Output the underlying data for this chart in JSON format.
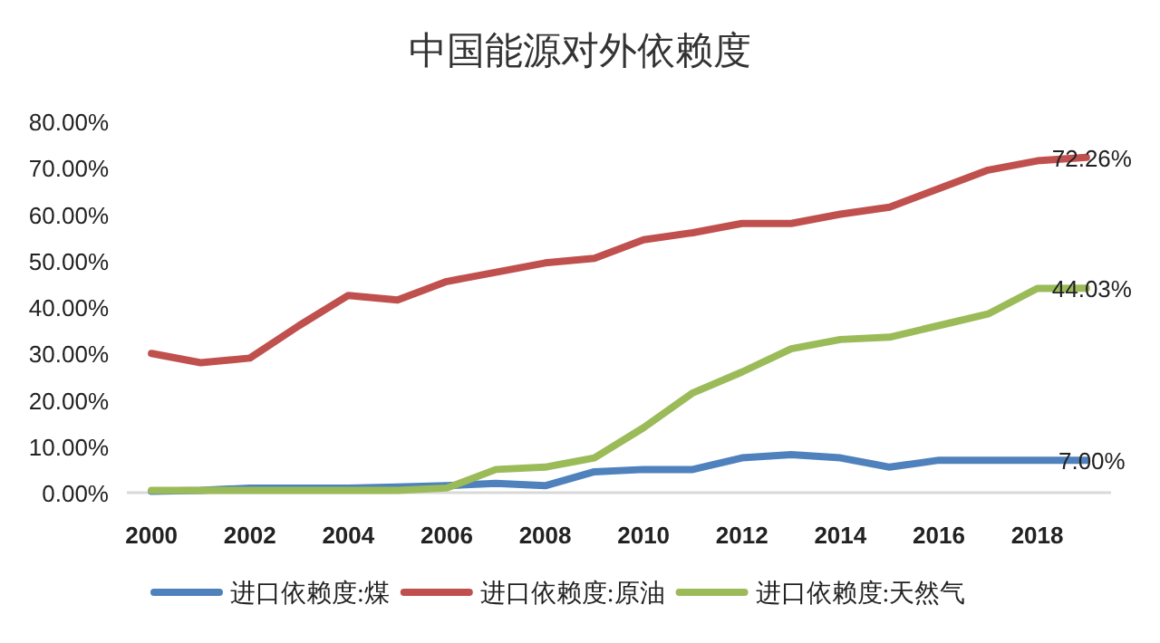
{
  "chart_data": {
    "type": "line",
    "title": "中国能源对外依赖度",
    "x": [
      2000,
      2001,
      2002,
      2003,
      2004,
      2005,
      2006,
      2007,
      2008,
      2009,
      2010,
      2011,
      2012,
      2013,
      2014,
      2015,
      2016,
      2017,
      2018,
      2019
    ],
    "series": [
      {
        "name": "进口依赖度:煤",
        "color": "#4f81bd",
        "values": [
          0.3,
          0.5,
          1,
          1,
          1,
          1.2,
          1.5,
          2,
          1.5,
          4.5,
          5,
          5,
          7.5,
          8.2,
          7.5,
          5.5,
          7,
          7,
          7,
          7.0
        ],
        "value_labels": [
          null,
          null,
          null,
          null,
          null,
          null,
          null,
          null,
          null,
          null,
          null,
          null,
          null,
          null,
          null,
          null,
          null,
          null,
          null,
          "7.00%"
        ]
      },
      {
        "name": "进口依赖度:原油",
        "color": "#c0504d",
        "values": [
          30,
          28,
          29,
          36,
          42.5,
          41.5,
          45.5,
          47.5,
          49.5,
          50.5,
          54.5,
          56,
          58,
          58,
          60,
          61.5,
          65.5,
          69.5,
          71.5,
          72.26
        ],
        "value_labels": [
          null,
          null,
          null,
          null,
          null,
          null,
          null,
          null,
          null,
          null,
          null,
          null,
          null,
          null,
          null,
          null,
          null,
          null,
          null,
          "72.26%"
        ]
      },
      {
        "name": "进口依赖度:天然气",
        "color": "#9bbb59",
        "values": [
          0.5,
          0.5,
          0.5,
          0.5,
          0.5,
          0.5,
          1,
          5,
          5.5,
          7.5,
          14,
          21.5,
          26,
          31,
          33,
          33.5,
          36,
          38.5,
          44,
          44.03
        ],
        "value_labels": [
          null,
          null,
          null,
          null,
          null,
          null,
          null,
          null,
          null,
          null,
          null,
          null,
          null,
          null,
          null,
          null,
          null,
          null,
          null,
          "44.03%"
        ]
      }
    ],
    "xlim": [
      1999.5,
      2019.5
    ],
    "xticks": [
      2000,
      2002,
      2004,
      2006,
      2008,
      2010,
      2012,
      2014,
      2016,
      2018
    ],
    "ylim": [
      0,
      80
    ],
    "yticks": [
      {
        "value": 0,
        "label": "0.00%"
      },
      {
        "value": 10,
        "label": "10.00%"
      },
      {
        "value": 20,
        "label": "20.00%"
      },
      {
        "value": 30,
        "label": "30.00%"
      },
      {
        "value": 40,
        "label": "40.00%"
      },
      {
        "value": 50,
        "label": "50.00%"
      },
      {
        "value": 60,
        "label": "60.00%"
      },
      {
        "value": 70,
        "label": "70.00%"
      },
      {
        "value": 80,
        "label": "80.00%"
      }
    ],
    "grid": false,
    "legend": "bottom",
    "marker": "none",
    "line_style": "solid"
  }
}
